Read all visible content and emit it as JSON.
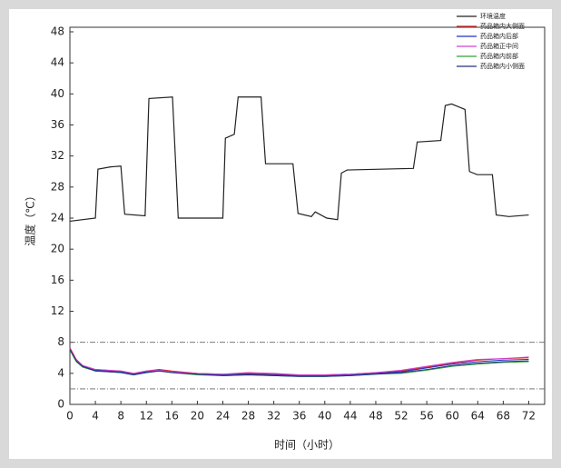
{
  "chart_data": {
    "type": "line",
    "x_label": "时间（小时）",
    "y_label": "温度（℃）",
    "xlim": [
      0,
      74.5
    ],
    "ylim": [
      0,
      48
    ],
    "xticks": [
      0,
      4,
      8,
      12,
      16,
      20,
      24,
      28,
      32,
      36,
      40,
      44,
      48,
      52,
      56,
      60,
      64,
      68,
      72
    ],
    "yticks": [
      0,
      4,
      8,
      12,
      16,
      20,
      24,
      28,
      32,
      36,
      40,
      44,
      48
    ],
    "reference_lines": [
      8,
      2
    ],
    "legend": "top-right",
    "series": [
      {
        "name": "环境温度",
        "color": "#222222",
        "x": [
          0,
          4,
          4.4,
          6.4,
          8,
          8.6,
          11.8,
          12.4,
          16.1,
          17,
          24,
          24.4,
          25.8,
          26.4,
          30,
          30.7,
          35,
          35.8,
          37.9,
          38.5,
          40.3,
          42,
          42.6,
          43.5,
          53.9,
          54.5,
          58.2,
          58.9,
          59.9,
          62,
          62.7,
          63.9,
          66.3,
          66.9,
          68.9,
          72
        ],
        "values": [
          23.6,
          24.0,
          30.3,
          30.6,
          30.7,
          24.5,
          24.3,
          39.4,
          39.6,
          24.0,
          24.0,
          34.3,
          34.8,
          39.6,
          39.6,
          31.0,
          31.0,
          24.6,
          24.2,
          24.8,
          24.0,
          23.8,
          29.8,
          30.2,
          30.4,
          33.8,
          34.0,
          38.5,
          38.7,
          38.0,
          30.0,
          29.6,
          29.6,
          24.4,
          24.2,
          24.4
        ]
      },
      {
        "name": "药品箱内大侧面",
        "color": "#e02020",
        "x": [
          0,
          1,
          2,
          4,
          8,
          10,
          12,
          14,
          16,
          20,
          24,
          28,
          32,
          36,
          40,
          44,
          48,
          52,
          56,
          60,
          64,
          68,
          72
        ],
        "values": [
          7.3,
          5.8,
          5.0,
          4.5,
          4.3,
          4.0,
          4.3,
          4.5,
          4.3,
          4.0,
          3.9,
          4.0,
          3.9,
          3.8,
          3.8,
          3.9,
          4.1,
          4.3,
          4.8,
          5.3,
          5.7,
          5.9,
          6.0
        ]
      },
      {
        "name": "药品箱内后部",
        "color": "#2030c0",
        "x": [
          0,
          1,
          2,
          4,
          8,
          10,
          12,
          14,
          16,
          20,
          24,
          28,
          32,
          36,
          40,
          44,
          48,
          52,
          56,
          60,
          64,
          68,
          72
        ],
        "values": [
          7.1,
          5.6,
          4.9,
          4.4,
          4.2,
          3.9,
          4.2,
          4.4,
          4.2,
          3.9,
          3.8,
          3.9,
          3.8,
          3.7,
          3.7,
          3.8,
          4.0,
          4.2,
          4.7,
          5.2,
          5.5,
          5.7,
          5.8
        ]
      },
      {
        "name": "药品箱正中间",
        "color": "#d040d0",
        "x": [
          0,
          1,
          2,
          4,
          8,
          10,
          12,
          14,
          16,
          20,
          24,
          28,
          32,
          36,
          40,
          44,
          48,
          52,
          56,
          60,
          64,
          68,
          72
        ],
        "values": [
          7.2,
          5.7,
          5.0,
          4.5,
          4.3,
          4.0,
          4.3,
          4.4,
          4.2,
          4.0,
          3.9,
          4.1,
          4.0,
          3.8,
          3.8,
          3.9,
          4.1,
          4.4,
          4.9,
          5.4,
          5.8,
          5.9,
          6.1
        ]
      },
      {
        "name": "药品箱内前部",
        "color": "#30a030",
        "x": [
          0,
          1,
          2,
          4,
          8,
          10,
          12,
          14,
          16,
          20,
          24,
          28,
          32,
          36,
          40,
          44,
          48,
          52,
          56,
          60,
          64,
          68,
          72
        ],
        "values": [
          7.0,
          5.5,
          4.8,
          4.3,
          4.1,
          3.8,
          4.1,
          4.3,
          4.1,
          3.8,
          3.7,
          3.8,
          3.7,
          3.6,
          3.6,
          3.7,
          3.9,
          4.0,
          4.4,
          4.9,
          5.2,
          5.4,
          5.5
        ]
      },
      {
        "name": "药品箱内小侧面",
        "color": "#203080",
        "x": [
          0,
          1,
          2,
          4,
          8,
          10,
          12,
          14,
          16,
          20,
          24,
          28,
          32,
          36,
          40,
          44,
          48,
          52,
          56,
          60,
          64,
          68,
          72
        ],
        "values": [
          7.1,
          5.6,
          4.9,
          4.3,
          4.1,
          3.8,
          4.1,
          4.3,
          4.1,
          3.9,
          3.7,
          3.8,
          3.7,
          3.6,
          3.6,
          3.7,
          3.9,
          4.1,
          4.5,
          5.0,
          5.3,
          5.5,
          5.6
        ]
      }
    ]
  }
}
